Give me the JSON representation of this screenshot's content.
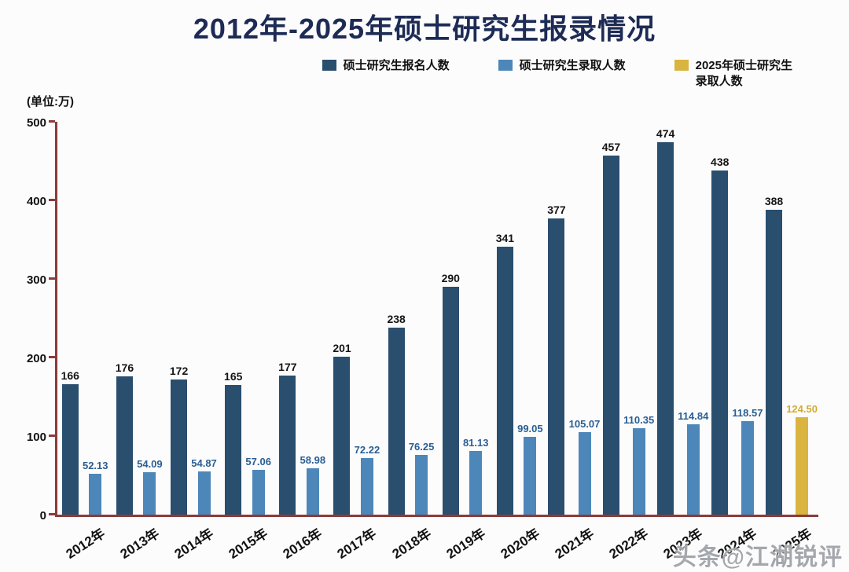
{
  "title": "2012年-2025年硕士研究生报录情况",
  "unit_label": "(单位:万)",
  "legend": [
    {
      "label": "硕士研究生报名人数",
      "color": "#2a4e6e"
    },
    {
      "label": "硕士研究生录取人数",
      "color": "#4d86b8"
    },
    {
      "label": "2025年硕士研究生\n录取人数",
      "color": "#d9b43f"
    }
  ],
  "watermark": "头条@江湖锐评",
  "chart_data": {
    "type": "bar",
    "categories": [
      "2012年",
      "2013年",
      "2014年",
      "2015年",
      "2016年",
      "2017年",
      "2018年",
      "2019年",
      "2020年",
      "2021年",
      "2022年",
      "2023年",
      "2024年",
      "2025年"
    ],
    "series": [
      {
        "name": "硕士研究生报名人数",
        "color": "#2a4e6e",
        "values": [
          166,
          176,
          172,
          165,
          177,
          201,
          238,
          290,
          341,
          377,
          457,
          474,
          438,
          388
        ]
      },
      {
        "name": "硕士研究生录取人数",
        "color": "#4d86b8",
        "values": [
          52.13,
          54.09,
          54.87,
          57.06,
          58.98,
          72.22,
          76.25,
          81.13,
          99.05,
          105.07,
          110.35,
          114.84,
          118.57,
          124.5
        ]
      }
    ],
    "highlight": {
      "category": "2025年",
      "series": "硕士研究生录取人数",
      "color": "#d9b43f"
    },
    "title": "2012年-2025年硕士研究生报录情况",
    "xlabel": "",
    "ylabel": "(单位:万)",
    "ylim": [
      0,
      500
    ],
    "yticks": [
      0,
      100,
      200,
      300,
      400,
      500
    ],
    "grid": false,
    "legend_position": "top",
    "axis_color": "#8a3b3b"
  }
}
